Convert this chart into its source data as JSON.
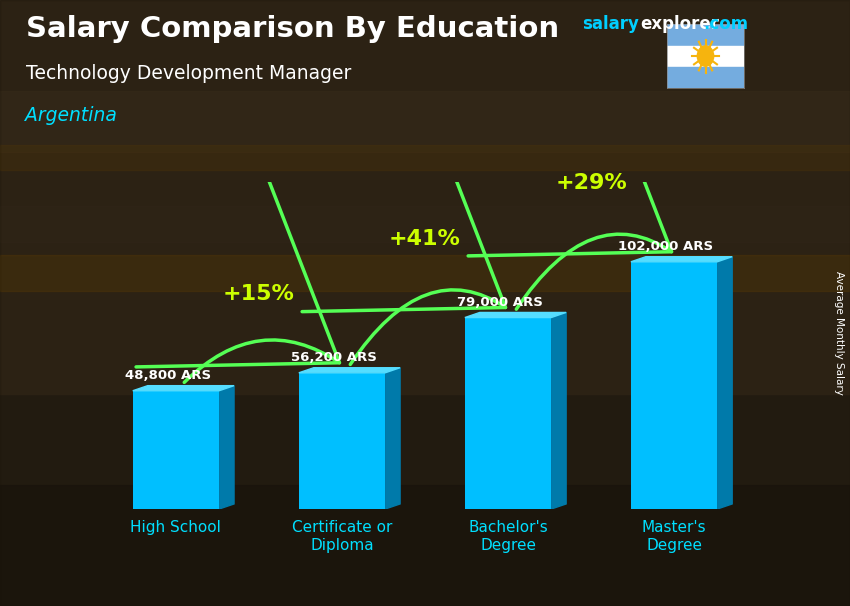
{
  "title": "Salary Comparison By Education",
  "subtitle": "Technology Development Manager",
  "country": "Argentina",
  "ylabel": "Average Monthly Salary",
  "categories": [
    "High School",
    "Certificate or\nDiploma",
    "Bachelor's\nDegree",
    "Master's\nDegree"
  ],
  "values": [
    48800,
    56200,
    79000,
    102000
  ],
  "value_labels": [
    "48,800 ARS",
    "56,200 ARS",
    "79,000 ARS",
    "102,000 ARS"
  ],
  "pct_changes": [
    "+15%",
    "+41%",
    "+29%"
  ],
  "bar_color_face": "#00BFFF",
  "bar_color_dark": "#007AAA",
  "bar_color_top": "#55DDFF",
  "title_color": "#FFFFFF",
  "subtitle_color": "#FFFFFF",
  "country_color": "#00DFFF",
  "ylabel_color": "#FFFFFF",
  "value_label_color": "#FFFFFF",
  "pct_color": "#CCFF00",
  "arrow_color": "#55FF55",
  "xtick_color": "#00DFFF",
  "bg_color": "#2a2520",
  "brand_salary_color": "#00CFFF",
  "brand_explorer_color": "#FFFFFF",
  "brand_com_color": "#00CFFF",
  "ylim": [
    0,
    135000
  ],
  "figsize": [
    8.5,
    6.06
  ],
  "dpi": 100
}
